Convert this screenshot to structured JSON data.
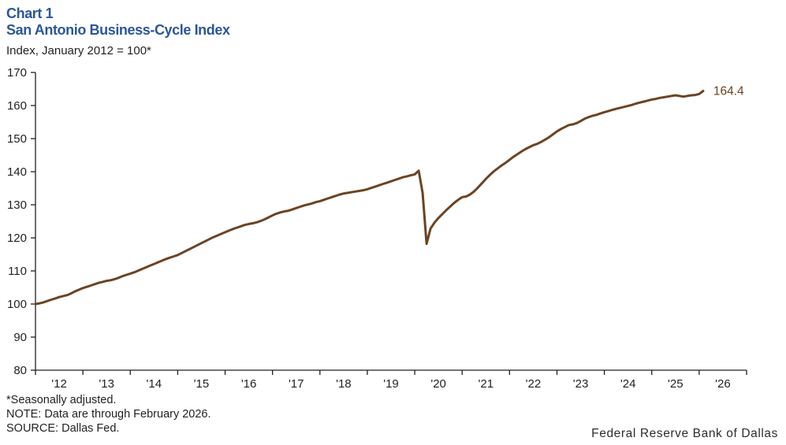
{
  "header": {
    "chart_number": "Chart 1",
    "title": "San Antonio Business-Cycle Index",
    "subtitle": "Index, January 2012 = 100*"
  },
  "footer": {
    "footnote": "*Seasonally adjusted.",
    "note": "NOTE: Data are through February 2026.",
    "source": "SOURCE: Dallas Fed.",
    "org": "Federal Reserve Bank of Dallas"
  },
  "colors": {
    "title_blue": "#2b5797",
    "line_brown": "#6b4423",
    "axis_ink": "#231f20"
  },
  "chart_data": {
    "type": "line",
    "title": "San Antonio Business-Cycle Index",
    "ylabel": "Index, January 2012 = 100*",
    "ylim": [
      80,
      170
    ],
    "y_tick_step": 10,
    "x_range": [
      2012,
      2027
    ],
    "x_tick_labels": [
      "'12",
      "'13",
      "'14",
      "'15",
      "'16",
      "'17",
      "'18",
      "'19",
      "'20",
      "'21",
      "'22",
      "'23",
      "'24",
      "'25",
      "'26"
    ],
    "frequency": "monthly",
    "series_start": "2012-01",
    "series_end": "2026-02",
    "end_label": "164.4",
    "grid": false,
    "legend": "none",
    "values": [
      100.0,
      100.2,
      100.5,
      100.9,
      101.3,
      101.7,
      102.1,
      102.4,
      102.7,
      103.2,
      103.8,
      104.3,
      104.8,
      105.2,
      105.6,
      106.0,
      106.4,
      106.7,
      107.0,
      107.2,
      107.5,
      107.9,
      108.4,
      108.8,
      109.2,
      109.6,
      110.1,
      110.6,
      111.1,
      111.6,
      112.1,
      112.6,
      113.1,
      113.6,
      114.0,
      114.4,
      114.8,
      115.4,
      116.0,
      116.6,
      117.2,
      117.8,
      118.4,
      119.0,
      119.6,
      120.2,
      120.7,
      121.2,
      121.7,
      122.2,
      122.7,
      123.1,
      123.5,
      123.9,
      124.2,
      124.4,
      124.7,
      125.1,
      125.6,
      126.2,
      126.8,
      127.3,
      127.7,
      128.0,
      128.2,
      128.6,
      129.0,
      129.4,
      129.8,
      130.1,
      130.4,
      130.8,
      131.1,
      131.5,
      131.9,
      132.3,
      132.7,
      133.1,
      133.4,
      133.6,
      133.8,
      134.0,
      134.2,
      134.4,
      134.7,
      135.1,
      135.5,
      135.9,
      136.3,
      136.7,
      137.1,
      137.5,
      137.9,
      138.3,
      138.6,
      138.9,
      139.2,
      140.3,
      133.5,
      118.2,
      122.8,
      124.6,
      126.0,
      127.2,
      128.4,
      129.5,
      130.6,
      131.5,
      132.3,
      132.5,
      133.1,
      134.0,
      135.2,
      136.5,
      137.8,
      139.0,
      140.1,
      141.0,
      141.9,
      142.7,
      143.6,
      144.5,
      145.3,
      146.1,
      146.8,
      147.4,
      148.0,
      148.4,
      149.0,
      149.7,
      150.4,
      151.3,
      152.2,
      152.9,
      153.5,
      154.1,
      154.3,
      154.7,
      155.3,
      156.0,
      156.5,
      156.9,
      157.2,
      157.6,
      158.0,
      158.3,
      158.7,
      159.0,
      159.3,
      159.6,
      159.9,
      160.2,
      160.6,
      160.9,
      161.2,
      161.5,
      161.8,
      162.0,
      162.3,
      162.5,
      162.7,
      162.9,
      163.1,
      162.9,
      162.7,
      162.9,
      163.1,
      163.2,
      163.5,
      164.4
    ]
  }
}
